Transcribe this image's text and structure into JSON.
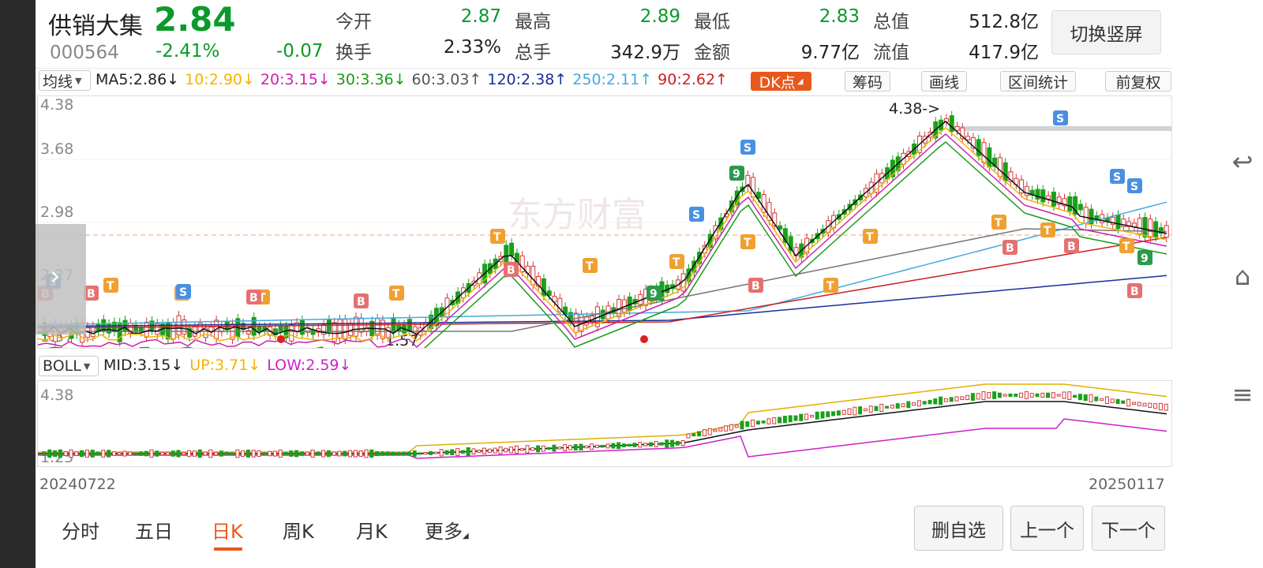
{
  "stock": {
    "name": "供销大集",
    "price": "2.84",
    "code": "000564",
    "change_pct": "-2.41%",
    "change": "-0.07"
  },
  "stats": [
    {
      "label": "今开",
      "value": "2.87",
      "color": "green"
    },
    {
      "label": "最高",
      "value": "2.89",
      "color": "green"
    },
    {
      "label": "最低",
      "value": "2.83",
      "color": "green"
    },
    {
      "label": "总值",
      "value": "512.8亿",
      "color": "dark"
    },
    {
      "label": "换手",
      "value": "2.33%",
      "color": "dark"
    },
    {
      "label": "总手",
      "value": "342.9万",
      "color": "dark"
    },
    {
      "label": "金额",
      "value": "9.77亿",
      "color": "dark"
    },
    {
      "label": "流值",
      "value": "417.9亿",
      "color": "dark"
    }
  ],
  "toggle_label": "切换竖屏",
  "ma_bar": {
    "selector": "均线",
    "items": [
      {
        "label": "MA5:2.86↓",
        "color": "#222222"
      },
      {
        "label": "10:2.90↓",
        "color": "#f0b400"
      },
      {
        "label": "20:3.15↓",
        "color": "#cc22aa"
      },
      {
        "label": "30:3.36↓",
        "color": "#1a9a1a"
      },
      {
        "label": "60:3.03↑",
        "color": "#555555"
      },
      {
        "label": "120:2.38↑",
        "color": "#1a2e9a"
      },
      {
        "label": "250:2.11↑",
        "color": "#44aadd"
      },
      {
        "label": "90:2.62↑",
        "color": "#cc2222"
      }
    ],
    "dk_label": "DK点",
    "tools": [
      "筹码",
      "画线",
      "区间统计",
      "前复权"
    ]
  },
  "main_chart": {
    "y_labels": [
      "4.38",
      "3.68",
      "2.98",
      "2.27",
      "1.57"
    ],
    "high_marker": "4.38->",
    "low_marker": "1.57"
  },
  "boll_bar": {
    "selector": "BOLL",
    "items": [
      {
        "label": "MID:3.15↓",
        "color": "#222222"
      },
      {
        "label": "UP:3.71↓",
        "color": "#f0b400"
      },
      {
        "label": "LOW:2.59↓",
        "color": "#cc22cc"
      }
    ]
  },
  "vol_chart": {
    "y_labels": [
      "4.38",
      "1.25"
    ]
  },
  "dates": {
    "start": "20240722",
    "end": "20250117"
  },
  "tabs": [
    "分时",
    "五日",
    "日K",
    "周K",
    "月K",
    "更多"
  ],
  "active_tab": "日K",
  "buttons": {
    "delete": "删自选",
    "prev": "上一个",
    "next": "下一个"
  },
  "watermark": "东方财富"
}
